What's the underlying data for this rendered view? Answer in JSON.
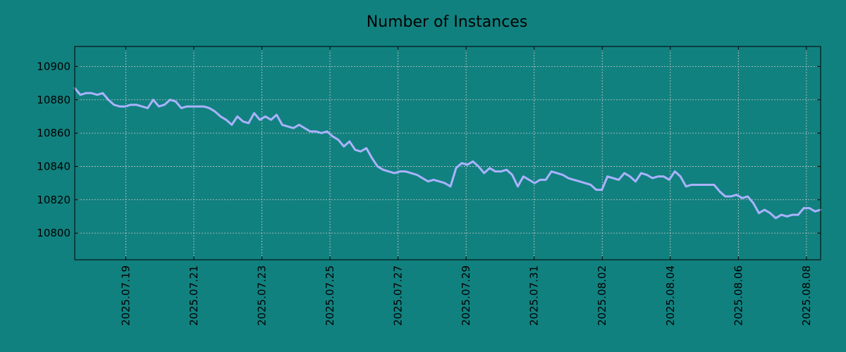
{
  "chart_data": {
    "type": "line",
    "title": "Number of Instances",
    "xlabel": "",
    "ylabel": "",
    "x_start": "2025.07.17 12:00",
    "x_end": "2025.08.08 10:00",
    "ylim": [
      10784,
      10912
    ],
    "y_ticks": [
      10800,
      10820,
      10840,
      10860,
      10880,
      10900
    ],
    "x_ticks": [
      "2025.07.19",
      "2025.07.21",
      "2025.07.23",
      "2025.07.25",
      "2025.07.27",
      "2025.07.29",
      "2025.07.31",
      "2025.08.02",
      "2025.08.04",
      "2025.08.06",
      "2025.08.08"
    ],
    "grid": true,
    "legend": "none",
    "series": [
      {
        "values": [
          10887,
          10883,
          10884,
          10884,
          10883,
          10884,
          10880,
          10877,
          10876,
          10876,
          10877,
          10877,
          10876,
          10875,
          10880,
          10876,
          10877,
          10880,
          10879,
          10875,
          10876,
          10876,
          10876,
          10876,
          10875,
          10873,
          10870,
          10868,
          10865,
          10870,
          10867,
          10866,
          10872,
          10868,
          10870,
          10868,
          10871,
          10865,
          10864,
          10863,
          10865,
          10863,
          10861,
          10861,
          10860,
          10861,
          10858,
          10856,
          10852,
          10855,
          10850,
          10849,
          10851,
          10845,
          10840,
          10838,
          10837,
          10836,
          10837,
          10837,
          10836,
          10835,
          10833,
          10831,
          10832,
          10831,
          10830,
          10828,
          10839,
          10842,
          10841,
          10843,
          10840,
          10836,
          10839,
          10837,
          10837,
          10838,
          10835,
          10828,
          10834,
          10832,
          10830,
          10832,
          10832,
          10837,
          10836,
          10835,
          10833,
          10832,
          10831,
          10830,
          10829,
          10826,
          10826,
          10834,
          10833,
          10832,
          10836,
          10834,
          10831,
          10836,
          10835,
          10833,
          10834,
          10834,
          10832,
          10837,
          10834,
          10828,
          10829,
          10829,
          10829,
          10829,
          10829,
          10825,
          10822,
          10822,
          10823,
          10821,
          10822,
          10818,
          10812,
          10814,
          10812,
          10809,
          10811,
          10810,
          10811,
          10811,
          10815,
          10815,
          10813,
          10814
        ]
      }
    ]
  },
  "colors": {
    "background": "#11817f",
    "line": "#aab2ff",
    "grid": "#c8c8c8",
    "axis": "#000000"
  }
}
